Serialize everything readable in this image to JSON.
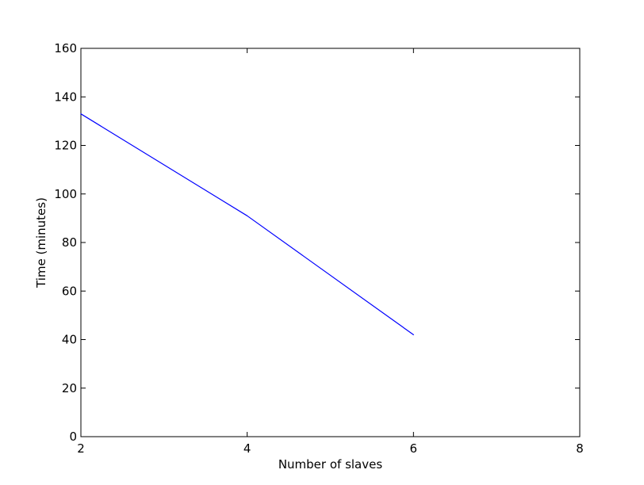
{
  "chart_data": {
    "type": "line",
    "title": "",
    "xlabel": "Number of slaves",
    "ylabel": "Time (minutes)",
    "xlim": [
      2,
      8
    ],
    "ylim": [
      0,
      160
    ],
    "x_ticks": [
      2,
      4,
      6,
      8
    ],
    "y_ticks": [
      0,
      20,
      40,
      60,
      80,
      100,
      120,
      140,
      160
    ],
    "x_tick_labels": [
      "2",
      "4",
      "6",
      "8"
    ],
    "y_tick_labels": [
      "0",
      "20",
      "40",
      "60",
      "80",
      "100",
      "120",
      "140",
      "160"
    ],
    "grid": false,
    "legend": "none",
    "series": [
      {
        "color": "#0000ff",
        "points": [
          {
            "x": 2,
            "y": 133
          },
          {
            "x": 4,
            "y": 91
          },
          {
            "x": 6,
            "y": 42
          }
        ]
      }
    ]
  }
}
